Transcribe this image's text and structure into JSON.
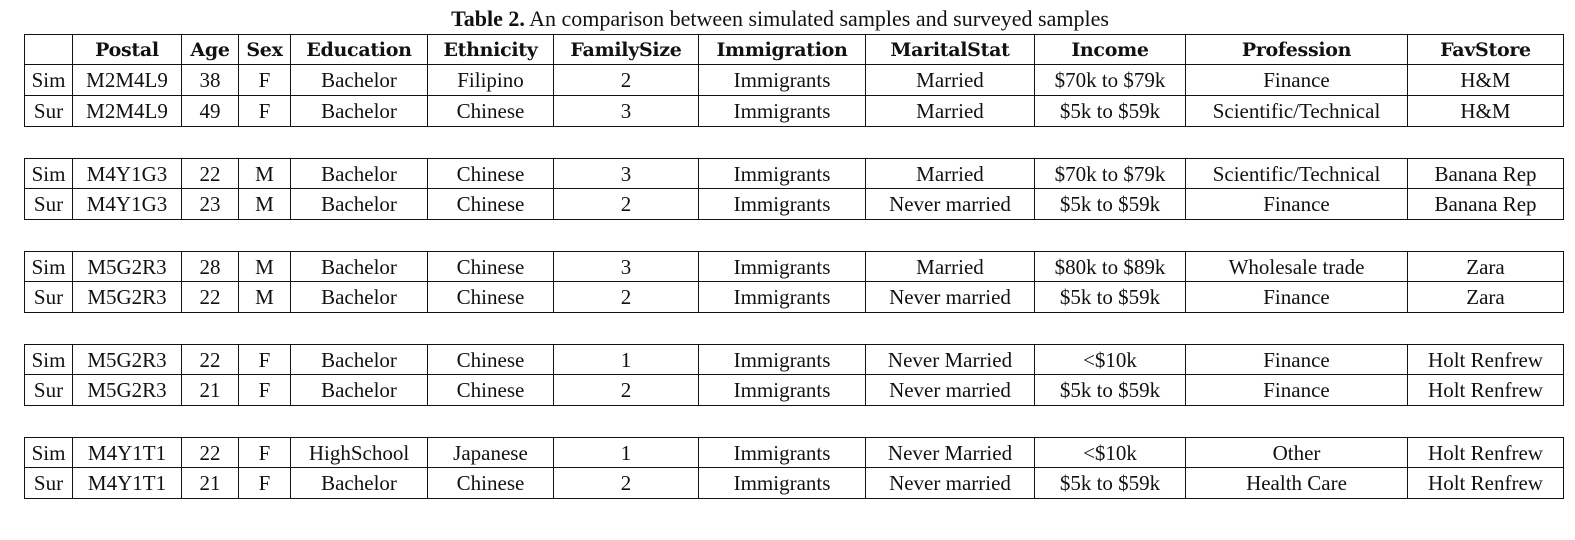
{
  "caption": {
    "label": "Table 2.",
    "text": " An comparison between simulated samples and surveyed samples"
  },
  "headers": [
    "",
    "Postal",
    "Age",
    "Sex",
    "Education",
    "Ethnicity",
    "FamilySize",
    "Immigration",
    "MaritalStat",
    "Income",
    "Profession",
    "FavStore"
  ],
  "groups": [
    [
      [
        "Sim",
        "M2M4L9",
        "38",
        "F",
        "Bachelor",
        "Filipino",
        "2",
        "Immigrants",
        "Married",
        "$70k to $79k",
        "Finance",
        "H&M"
      ],
      [
        "Sur",
        "M2M4L9",
        "49",
        "F",
        "Bachelor",
        "Chinese",
        "3",
        "Immigrants",
        "Married",
        "$5k to $59k",
        "Scientific/Technical",
        "H&M"
      ]
    ],
    [
      [
        "Sim",
        "M4Y1G3",
        "22",
        "M",
        "Bachelor",
        "Chinese",
        "3",
        "Immigrants",
        "Married",
        "$70k to $79k",
        "Scientific/Technical",
        "Banana Rep"
      ],
      [
        "Sur",
        "M4Y1G3",
        "23",
        "M",
        "Bachelor",
        "Chinese",
        "2",
        "Immigrants",
        "Never married",
        "$5k to $59k",
        "Finance",
        "Banana Rep"
      ]
    ],
    [
      [
        "Sim",
        "M5G2R3",
        "28",
        "M",
        "Bachelor",
        "Chinese",
        "3",
        "Immigrants",
        "Married",
        "$80k to $89k",
        "Wholesale trade",
        "Zara"
      ],
      [
        "Sur",
        "M5G2R3",
        "22",
        "M",
        "Bachelor",
        "Chinese",
        "2",
        "Immigrants",
        "Never married",
        "$5k to $59k",
        "Finance",
        "Zara"
      ]
    ],
    [
      [
        "Sim",
        "M5G2R3",
        "22",
        "F",
        "Bachelor",
        "Chinese",
        "1",
        "Immigrants",
        "Never Married",
        "<$10k",
        "Finance",
        "Holt Renfrew"
      ],
      [
        "Sur",
        "M5G2R3",
        "21",
        "F",
        "Bachelor",
        "Chinese",
        "2",
        "Immigrants",
        "Never married",
        "$5k to $59k",
        "Finance",
        "Holt Renfrew"
      ]
    ],
    [
      [
        "Sim",
        "M4Y1T1",
        "22",
        "F",
        "HighSchool",
        "Japanese",
        "1",
        "Immigrants",
        "Never Married",
        "<$10k",
        "Other",
        "Holt Renfrew"
      ],
      [
        "Sur",
        "M4Y1T1",
        "21",
        "F",
        "Bachelor",
        "Chinese",
        "2",
        "Immigrants",
        "Never married",
        "$5k to $59k",
        "Health Care",
        "Holt Renfrew"
      ]
    ]
  ]
}
